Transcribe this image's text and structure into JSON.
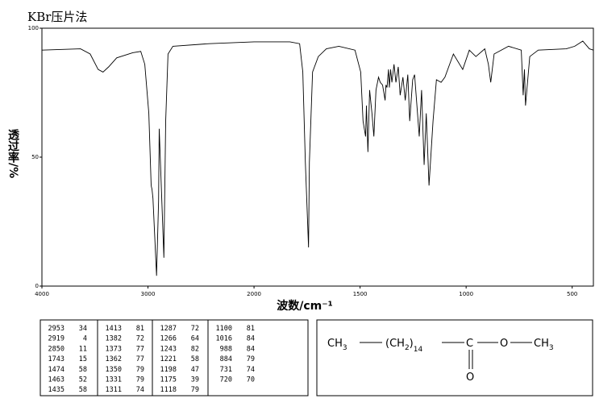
{
  "chart_data": {
    "type": "line",
    "title": "KBr压片法",
    "x_label": "波数/cm⁻¹",
    "y_label": "透过率/%",
    "xlim": [
      4000,
      400
    ],
    "x_scale_break": 2000,
    "xticks": [
      4000,
      3000,
      2000,
      1500,
      1000,
      500
    ],
    "ylim": [
      0,
      100
    ],
    "yticks": [
      0,
      50,
      100
    ],
    "color": "#000000",
    "x": [
      4000,
      3636,
      3545,
      3470,
      3424,
      3371,
      3295,
      3144,
      3068,
      3030,
      2992,
      2970,
      2962,
      2953,
      2919,
      2900,
      2894,
      2879,
      2850,
      2833,
      2811,
      2765,
      2424,
      2000,
      1831,
      1785,
      1770,
      1758,
      1743,
      1739,
      1724,
      1697,
      1659,
      1600,
      1524,
      1497,
      1486,
      1474,
      1470,
      1463,
      1455,
      1444,
      1435,
      1425,
      1413,
      1405,
      1394,
      1382,
      1378,
      1373,
      1366,
      1362,
      1356,
      1350,
      1340,
      1331,
      1320,
      1311,
      1298,
      1287,
      1275,
      1266,
      1252,
      1243,
      1221,
      1210,
      1198,
      1188,
      1175,
      1156,
      1140,
      1118,
      1100,
      1060,
      1016,
      985,
      954,
      912,
      895,
      884,
      868,
      800,
      740,
      731,
      725,
      720,
      700,
      660,
      528,
      488,
      450,
      419,
      400
    ],
    "values": [
      91.5,
      92,
      90,
      84,
      83,
      85,
      88.5,
      90.5,
      91,
      86,
      67,
      39,
      37.5,
      34,
      4,
      33,
      61,
      44,
      11,
      64,
      90,
      93,
      94,
      94.7,
      94.7,
      94,
      83,
      48,
      15,
      48,
      83,
      89,
      92,
      93,
      91.5,
      83,
      64,
      58,
      70,
      52,
      76,
      67,
      58,
      76,
      81,
      79,
      78,
      72,
      78,
      77,
      84,
      77,
      84,
      79,
      86,
      79,
      85,
      74,
      81,
      72,
      82,
      64,
      80,
      82,
      58,
      76,
      47,
      67,
      39,
      64,
      80,
      79,
      81,
      90,
      84,
      91.5,
      89,
      92,
      86,
      79,
      90,
      93,
      91.5,
      74,
      84,
      70,
      89,
      91.5,
      92,
      93,
      95,
      92,
      91.5
    ]
  },
  "peak_table": {
    "columns": [
      [
        [
          2953,
          34
        ],
        [
          2919,
          4
        ],
        [
          2850,
          11
        ],
        [
          1743,
          15
        ],
        [
          1474,
          58
        ],
        [
          1463,
          52
        ],
        [
          1435,
          58
        ]
      ],
      [
        [
          1413,
          81
        ],
        [
          1382,
          72
        ],
        [
          1373,
          77
        ],
        [
          1362,
          77
        ],
        [
          1350,
          79
        ],
        [
          1331,
          79
        ],
        [
          1311,
          74
        ]
      ],
      [
        [
          1287,
          72
        ],
        [
          1266,
          64
        ],
        [
          1243,
          82
        ],
        [
          1221,
          58
        ],
        [
          1198,
          47
        ],
        [
          1175,
          39
        ],
        [
          1118,
          79
        ]
      ],
      [
        [
          1100,
          81
        ],
        [
          1016,
          84
        ],
        [
          988,
          84
        ],
        [
          884,
          79
        ],
        [
          731,
          74
        ],
        [
          720,
          70
        ]
      ]
    ]
  },
  "structure": {
    "parts": [
      "CH",
      "3",
      "(CH",
      "2",
      ")",
      "14",
      "C",
      "O",
      "CH",
      "3",
      "O"
    ]
  }
}
